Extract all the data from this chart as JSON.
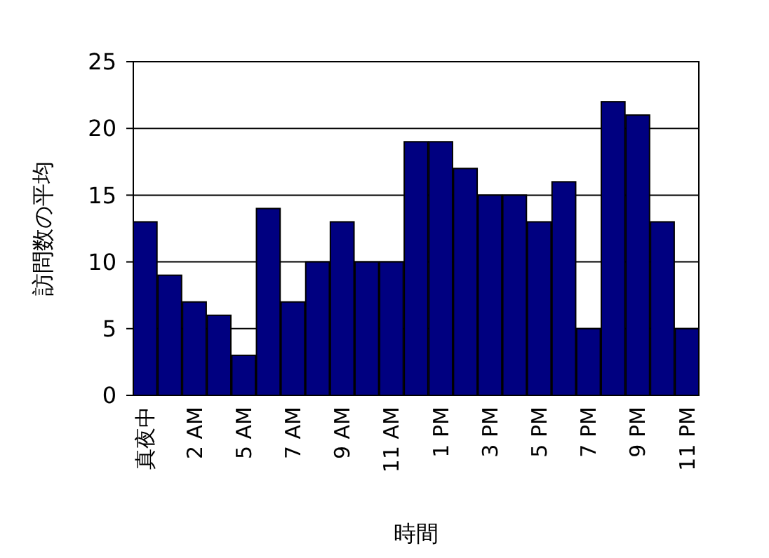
{
  "chart_data": {
    "type": "bar",
    "xlabel": "時間",
    "ylabel": "訪問数の平均",
    "categories": [
      "真夜中",
      null,
      "2 AM",
      null,
      "5 AM",
      null,
      "7 AM",
      null,
      "9 AM",
      null,
      "11 AM",
      null,
      "1 PM",
      null,
      "3 PM",
      null,
      "5 PM",
      null,
      "7 PM",
      null,
      "9 PM",
      null,
      "11 PM"
    ],
    "values": [
      13,
      9,
      7,
      6,
      3,
      14,
      7,
      10,
      13,
      10,
      10,
      19,
      19,
      17,
      15,
      15,
      13,
      16,
      5,
      22,
      21,
      13,
      5
    ],
    "color": "#000080",
    "ylim": [
      0,
      25
    ],
    "yticks": [
      0,
      5,
      10,
      15,
      20,
      25
    ],
    "grid": "y"
  }
}
